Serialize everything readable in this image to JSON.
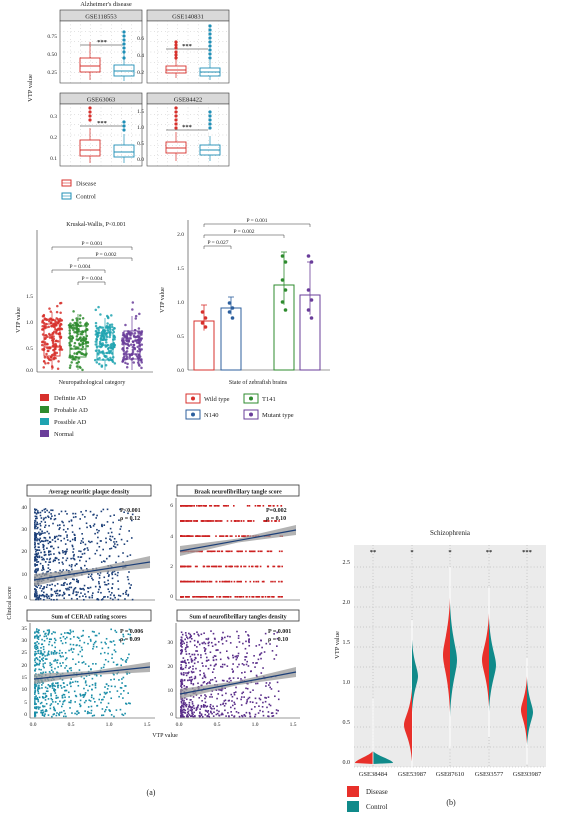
{
  "figure_labels": {
    "a": "(a)",
    "b": "(b)"
  },
  "alz": {
    "title": "Alzheimer's disease",
    "ylabel": "VTP value",
    "panels": [
      {
        "name": "GSE118553",
        "yticks": [
          "0.25",
          "0.50",
          "0.75"
        ],
        "sig": "***"
      },
      {
        "name": "GSE140831",
        "yticks": [
          "0.2",
          "0.4",
          "0.6"
        ],
        "sig": "***"
      },
      {
        "name": "GSE63063",
        "yticks": [
          "0.1",
          "0.2",
          "0.3"
        ],
        "sig": "***"
      },
      {
        "name": "GSE84422",
        "yticks": [
          "0.0",
          "0.5",
          "1.0",
          "1.5"
        ],
        "sig": "***"
      }
    ],
    "legend": [
      {
        "label": "Disease",
        "color": "#d7302c"
      },
      {
        "label": "Control",
        "color": "#1f8fb6"
      }
    ]
  },
  "neuro": {
    "title": "Kruskal-Wallis, P<0.001",
    "xlabel": "Neuropathological category",
    "ylabel": "VTP value",
    "yticks": [
      "0.0",
      "0.5",
      "1.0",
      "1.5"
    ],
    "pvals": [
      "P = 0.001",
      "P = 0.002",
      "P = 0.004",
      "P = 0.004"
    ],
    "legend": [
      {
        "label": "Definite AD",
        "color": "#d7302c"
      },
      {
        "label": "Probable AD",
        "color": "#2e8b2e"
      },
      {
        "label": "Possible AD",
        "color": "#1fa3b0"
      },
      {
        "label": "Normal",
        "color": "#6a3d9a"
      }
    ]
  },
  "zebra": {
    "xlabel": "State of zebrafish brains",
    "ylabel": "VTP value",
    "yticks": [
      "0.0",
      "0.5",
      "1.0",
      "1.5",
      "2.0"
    ],
    "pvals": [
      "P = 0.001",
      "P = 0.002",
      "P = 0.027"
    ],
    "legend": [
      {
        "label": "Wild type",
        "color": "#d7302c"
      },
      {
        "label": "T141",
        "color": "#2e8b2e"
      },
      {
        "label": "N140",
        "color": "#2c5f9e"
      },
      {
        "label": "Mutant type",
        "color": "#6a3d9a"
      }
    ]
  },
  "clinical": {
    "ylabel": "Clinical score",
    "xlabel": "VTP value",
    "xticks": [
      "0.0",
      "0.5",
      "1.0",
      "1.5"
    ],
    "panels": [
      {
        "title": "Average neuritic plaque density",
        "p": "P<0.001",
        "rho": "ρ = 0.12",
        "yticks": [
          "0",
          "10",
          "20",
          "30",
          "40"
        ],
        "color": "#1c3f78"
      },
      {
        "title": "Braak neurofibrillary tangle score",
        "p": "P=0.002",
        "rho": "ρ = 0.10",
        "yticks": [
          "0",
          "2",
          "4",
          "6"
        ],
        "color": "#cc2020"
      },
      {
        "title": "Sum of CERAD rating scores",
        "p": "P = 0.006",
        "rho": "ρ = 0.09",
        "yticks": [
          "0",
          "5",
          "10",
          "15",
          "20",
          "25",
          "30",
          "35"
        ],
        "color": "#1b8ea8"
      },
      {
        "title": "Sum of neurofibrillary tangles density",
        "p": "P = 0.001",
        "rho": "ρ = 0.10",
        "yticks": [
          "0",
          "10",
          "20",
          "30"
        ],
        "color": "#5a2e8a"
      }
    ]
  },
  "scz": {
    "title": "Schizophrenia",
    "ylabel": "VTP value",
    "yticks": [
      "0.0",
      "0.5",
      "1.0",
      "1.5",
      "2.0",
      "2.5"
    ],
    "groups": [
      {
        "name": "GSE38484",
        "sig": "**"
      },
      {
        "name": "GSE53987",
        "sig": "*"
      },
      {
        "name": "GSE87610",
        "sig": "*"
      },
      {
        "name": "GSE93577",
        "sig": "**"
      },
      {
        "name": "GSE93987",
        "sig": "***"
      }
    ],
    "legend": [
      {
        "label": "Disease",
        "color": "#e8302a"
      },
      {
        "label": "Control",
        "color": "#108a8a"
      }
    ]
  },
  "chart_data": [
    {
      "type": "box",
      "title": "GSE118553",
      "categories": [
        "Disease",
        "Control"
      ],
      "median": [
        0.32,
        0.26
      ],
      "ylim": [
        0.1,
        0.85
      ]
    },
    {
      "type": "box",
      "title": "GSE140831",
      "categories": [
        "Disease",
        "Control"
      ],
      "median": [
        0.25,
        0.23
      ],
      "ylim": [
        0.1,
        0.7
      ]
    },
    {
      "type": "box",
      "title": "GSE63063",
      "categories": [
        "Disease",
        "Control"
      ],
      "median": [
        0.15,
        0.13
      ],
      "ylim": [
        0.07,
        0.36
      ]
    },
    {
      "type": "box",
      "title": "GSE84422",
      "categories": [
        "Disease",
        "Control"
      ],
      "median": [
        0.42,
        0.35
      ],
      "ylim": [
        0,
        1.7
      ]
    },
    {
      "type": "box",
      "title": "Kruskal-Wallis, P<0.001",
      "categories": [
        "Definite AD",
        "Probable AD",
        "Possible AD",
        "Normal"
      ],
      "median": [
        0.45,
        0.42,
        0.36,
        0.33
      ],
      "ylim": [
        0,
        1.6
      ]
    },
    {
      "type": "bar",
      "categories": [
        "Wild type",
        "N140",
        "T141",
        "Mutant type"
      ],
      "values": [
        0.72,
        0.92,
        1.25,
        1.1
      ],
      "ylim": [
        0,
        2.2
      ]
    },
    {
      "type": "scatter",
      "title": "Average neuritic plaque density",
      "fit": {
        "slope": 2.5,
        "intercept": 7.0
      },
      "ylim": [
        0,
        42
      ],
      "xlim": [
        0,
        1.6
      ]
    },
    {
      "type": "scatter",
      "title": "Braak neurofibrillary tangle score",
      "fit": {
        "slope": 0.8,
        "intercept": 3.3
      },
      "ylim": [
        0,
        6.3
      ],
      "xlim": [
        0,
        1.6
      ]
    },
    {
      "type": "scatter",
      "title": "Sum of CERAD rating scores",
      "fit": {
        "slope": 1.9,
        "intercept": 14.5
      },
      "ylim": [
        0,
        37
      ],
      "xlim": [
        0,
        1.6
      ]
    },
    {
      "type": "scatter",
      "title": "Sum of neurofibrillary tangles density",
      "fit": {
        "slope": 3.3,
        "intercept": 9.0
      },
      "ylim": [
        0,
        37
      ],
      "xlim": [
        0,
        1.6
      ]
    },
    {
      "type": "violin",
      "title": "Schizophrenia",
      "categories": [
        "GSE38484",
        "GSE53987",
        "GSE87610",
        "GSE93577",
        "GSE93987"
      ],
      "disease_center": [
        0.12,
        0.55,
        1.35,
        1.3,
        0.72
      ],
      "control_center": [
        0.14,
        1.15,
        1.35,
        1.25,
        0.7
      ],
      "ylim": [
        0,
        2.7
      ]
    }
  ]
}
